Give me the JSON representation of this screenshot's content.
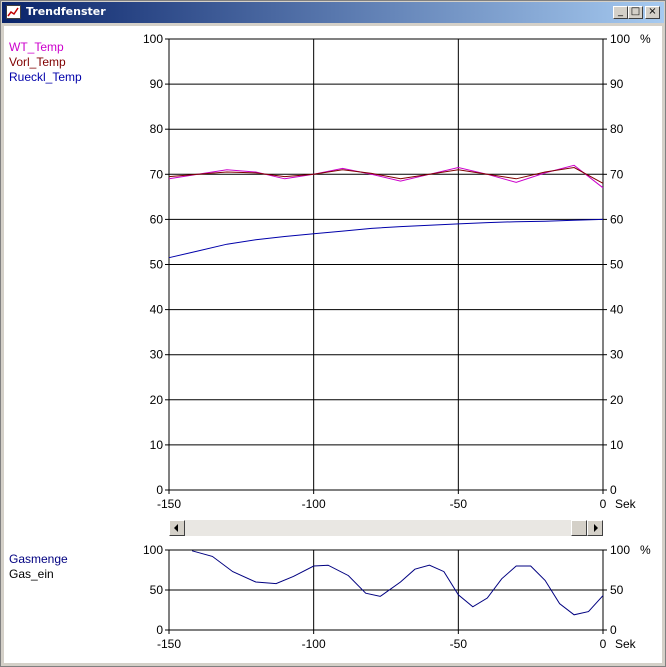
{
  "window": {
    "title": "Trendfenster",
    "minimize_label": "_",
    "maximize_label": "□",
    "close_label": "×"
  },
  "top_legend": [
    {
      "name": "WT_Temp",
      "color": "#cc00cc"
    },
    {
      "name": "Vorl_Temp",
      "color": "#800000"
    },
    {
      "name": "Rueckl_Temp",
      "color": "#0000aa"
    }
  ],
  "bottom_legend": [
    {
      "name": "Gasmenge",
      "color": "#000080"
    },
    {
      "name": "Gas_ein",
      "color": "#000000"
    }
  ],
  "chart_data": [
    {
      "type": "line",
      "x_unit": "Sek",
      "y_right_unit": "%",
      "xlim": [
        -150,
        0
      ],
      "ylim": [
        0,
        100
      ],
      "x_ticks": [
        -150,
        -100,
        -50,
        0
      ],
      "y_ticks": [
        0,
        10,
        20,
        30,
        40,
        50,
        60,
        70,
        80,
        90,
        100
      ],
      "grid": true,
      "legend_placement": "left",
      "series": [
        {
          "name": "WT_Temp",
          "color": "#cc00cc",
          "x": [
            -150,
            -140,
            -130,
            -120,
            -110,
            -100,
            -90,
            -80,
            -70,
            -60,
            -50,
            -40,
            -30,
            -20,
            -10,
            0
          ],
          "y": [
            69,
            70,
            71,
            70.5,
            69,
            70,
            71.3,
            70,
            68.5,
            70,
            71.5,
            70,
            68.2,
            70.3,
            72,
            67
          ]
        },
        {
          "name": "Vorl_Temp",
          "color": "#800000",
          "x": [
            -150,
            -140,
            -130,
            -120,
            -110,
            -100,
            -90,
            -80,
            -70,
            -60,
            -50,
            -40,
            -30,
            -20,
            -10,
            0
          ],
          "y": [
            69.5,
            70,
            70.5,
            70.3,
            69.5,
            70,
            71,
            70.2,
            69,
            70,
            71,
            70,
            69,
            70.5,
            71.5,
            68
          ]
        },
        {
          "name": "Rueckl_Temp",
          "color": "#0000aa",
          "x": [
            -150,
            -140,
            -130,
            -120,
            -110,
            -100,
            -90,
            -80,
            -70,
            -60,
            -50,
            -40,
            -30,
            -20,
            -10,
            0
          ],
          "y": [
            51.5,
            53,
            54.5,
            55.5,
            56.2,
            56.8,
            57.4,
            58,
            58.4,
            58.7,
            59,
            59.3,
            59.5,
            59.6,
            59.8,
            60
          ]
        }
      ]
    },
    {
      "type": "line",
      "x_unit": "Sek",
      "y_right_unit": "%",
      "xlim": [
        -150,
        0
      ],
      "ylim": [
        0,
        100
      ],
      "x_ticks": [
        -150,
        -100,
        -50,
        0
      ],
      "y_ticks": [
        0,
        50,
        100
      ],
      "grid": true,
      "legend_placement": "left",
      "series": [
        {
          "name": "Gasmenge",
          "color": "#000080",
          "x": [
            -142,
            -135,
            -128,
            -120,
            -113,
            -107,
            -100,
            -95,
            -88,
            -82,
            -77,
            -70,
            -65,
            -60,
            -55,
            -50,
            -45,
            -40,
            -35,
            -30,
            -25,
            -20,
            -15,
            -10,
            -5,
            0
          ],
          "y": [
            99,
            92,
            73,
            60,
            58,
            67,
            80,
            81,
            68,
            46,
            42,
            60,
            76,
            81,
            73,
            44,
            29,
            40,
            64,
            80,
            80,
            62,
            33,
            19,
            23,
            43
          ]
        },
        {
          "name": "Gas_ein",
          "color": "#000000",
          "x": [],
          "y": []
        }
      ]
    }
  ]
}
